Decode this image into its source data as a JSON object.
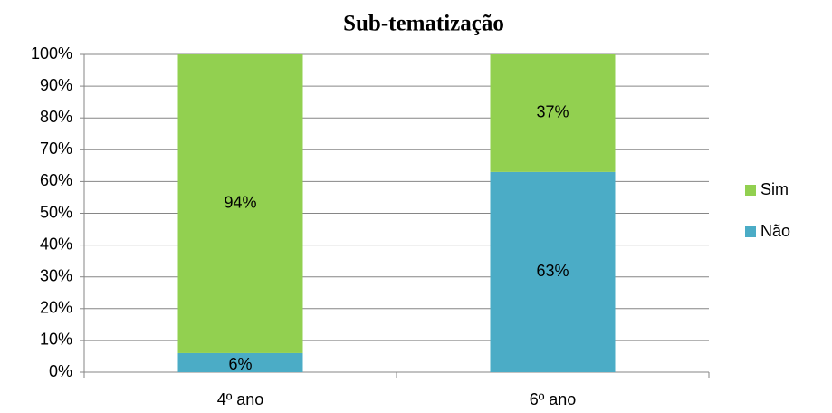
{
  "chart_data": {
    "type": "stacked_bar",
    "title": "Sub-tematização",
    "categories": [
      "4º ano",
      "6º ano"
    ],
    "series": [
      {
        "name": "Não",
        "color": "#4bacc6",
        "values": [
          6,
          63
        ],
        "value_labels": [
          "6%",
          "63%"
        ]
      },
      {
        "name": "Sim",
        "color": "#92d050",
        "values": [
          94,
          37
        ],
        "value_labels": [
          "94%",
          "37%"
        ]
      }
    ],
    "ylim": [
      0,
      100
    ],
    "yticks": [
      {
        "value": 0,
        "label": "0%"
      },
      {
        "value": 10,
        "label": "10%"
      },
      {
        "value": 20,
        "label": "20%"
      },
      {
        "value": 30,
        "label": "30%"
      },
      {
        "value": 40,
        "label": "40%"
      },
      {
        "value": 50,
        "label": "50%"
      },
      {
        "value": 60,
        "label": "60%"
      },
      {
        "value": 70,
        "label": "70%"
      },
      {
        "value": 80,
        "label": "80%"
      },
      {
        "value": 90,
        "label": "90%"
      },
      {
        "value": 100,
        "label": "100%"
      }
    ],
    "grid": true,
    "legend": "right"
  }
}
